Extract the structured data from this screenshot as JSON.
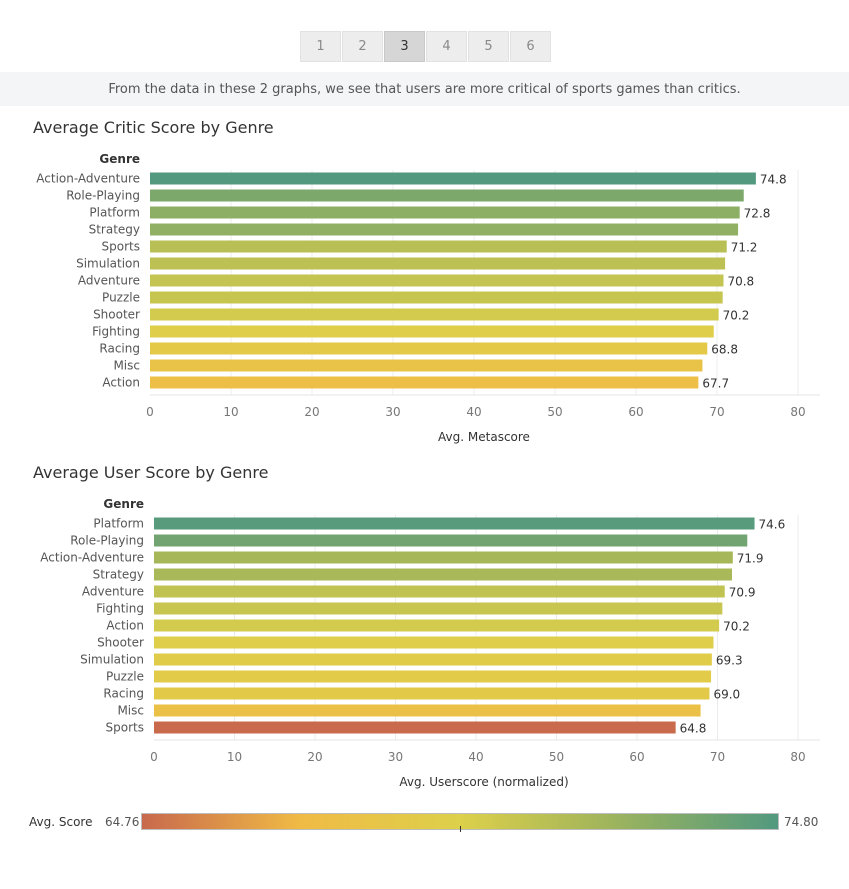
{
  "pager": {
    "pages": [
      "1",
      "2",
      "3",
      "4",
      "5",
      "6"
    ],
    "active": 2
  },
  "caption": "From the data in these 2 graphs, we see that users are more critical of sports games than critics.",
  "colors": {
    "low": "#c8694d",
    "mid": "#f0bb45",
    "mid2": "#ddd04a",
    "high": "#52997f"
  },
  "legend": {
    "label": "Avg. Score",
    "min_label": "64.76",
    "max_label": "74.80",
    "min": 64.76,
    "max": 74.8
  },
  "chart_data": [
    {
      "type": "bar",
      "orientation": "horizontal",
      "title": "Average Critic Score by Genre",
      "row_header": "Genre",
      "xlabel": "Avg. Metascore",
      "xlim": [
        0,
        80
      ],
      "ticks": [
        "0",
        "10",
        "20",
        "30",
        "40",
        "50",
        "60",
        "70",
        "80"
      ],
      "categories": [
        "Action-Adventure",
        "Role-Playing",
        "Platform",
        "Strategy",
        "Sports",
        "Simulation",
        "Adventure",
        "Puzzle",
        "Shooter",
        "Fighting",
        "Racing",
        "Misc",
        "Action"
      ],
      "values": [
        74.8,
        73.3,
        72.8,
        72.6,
        71.2,
        71.0,
        70.8,
        70.7,
        70.2,
        69.6,
        68.8,
        68.2,
        67.7
      ],
      "data_labels": [
        "74.8",
        "",
        "72.8",
        "",
        "71.2",
        "",
        "70.8",
        "",
        "70.2",
        "",
        "68.8",
        "",
        "67.7"
      ]
    },
    {
      "type": "bar",
      "orientation": "horizontal",
      "title": "Average User Score by Genre",
      "row_header": "Genre",
      "xlabel": "Avg. Userscore (normalized)",
      "xlim": [
        0,
        80
      ],
      "ticks": [
        "0",
        "10",
        "20",
        "30",
        "40",
        "50",
        "60",
        "70",
        "80"
      ],
      "categories": [
        "Platform",
        "Role-Playing",
        "Action-Adventure",
        "Strategy",
        "Adventure",
        "Fighting",
        "Action",
        "Shooter",
        "Simulation",
        "Puzzle",
        "Racing",
        "Misc",
        "Sports"
      ],
      "values": [
        74.6,
        73.7,
        71.9,
        71.8,
        70.9,
        70.6,
        70.2,
        69.5,
        69.3,
        69.2,
        69.0,
        67.9,
        64.8
      ],
      "data_labels": [
        "74.6",
        "",
        "71.9",
        "",
        "70.9",
        "",
        "70.2",
        "",
        "69.3",
        "",
        "69.0",
        "",
        "64.8"
      ]
    }
  ]
}
